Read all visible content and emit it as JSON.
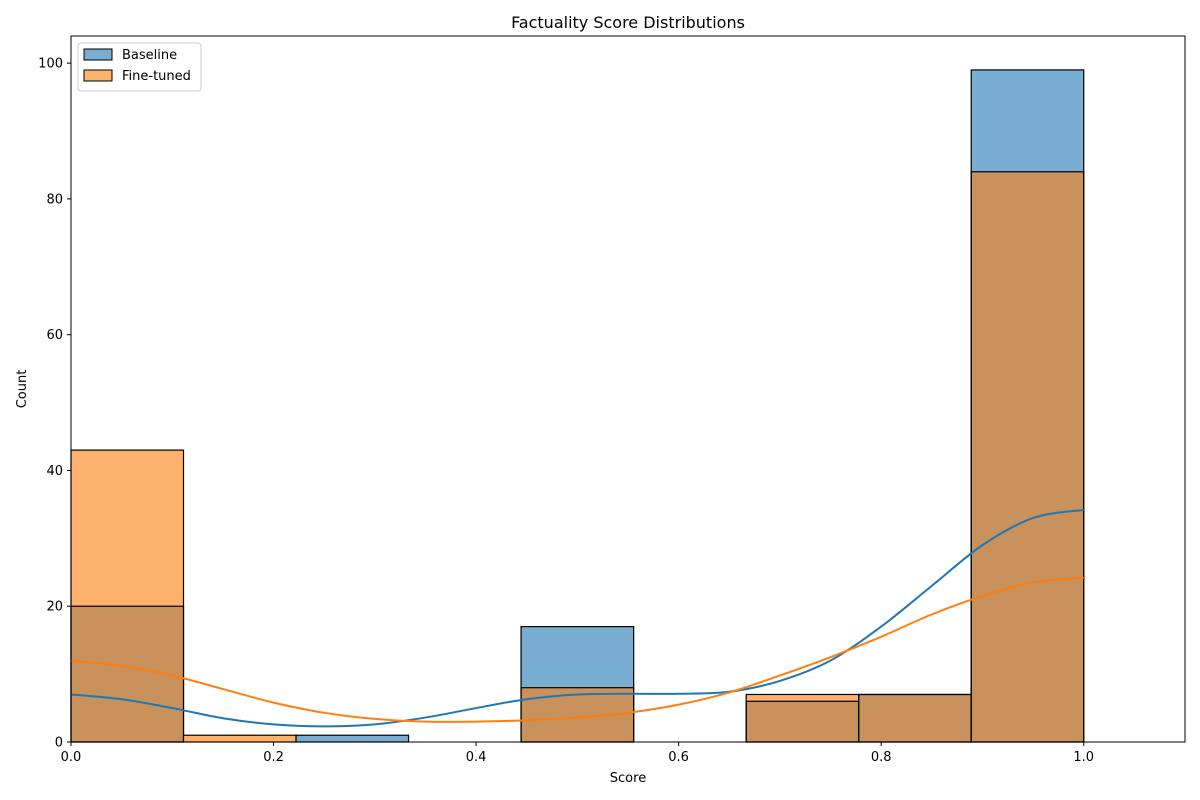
{
  "chart_data": {
    "type": "histogram",
    "title": "Factuality Score Distributions",
    "xlabel": "Score",
    "ylabel": "Count",
    "xlim": [
      0,
      1.1
    ],
    "ylim": [
      0,
      104
    ],
    "x_ticks": [
      0.0,
      0.2,
      0.4,
      0.6,
      0.8,
      1.0
    ],
    "x_tick_labels": [
      "0.0",
      "0.2",
      "0.4",
      "0.6",
      "0.8",
      "1.0"
    ],
    "y_ticks": [
      0,
      20,
      40,
      60,
      80,
      100
    ],
    "y_tick_labels": [
      "0",
      "20",
      "40",
      "60",
      "80",
      "100"
    ],
    "grid": false,
    "legend_position": "top-left",
    "bin_edges": [
      0.0,
      0.1111,
      0.2222,
      0.3333,
      0.4444,
      0.5556,
      0.6667,
      0.7778,
      0.8889,
      1.0
    ],
    "series": [
      {
        "name": "Baseline",
        "color": "#1f77b4",
        "counts": [
          20,
          0,
          1,
          0,
          17,
          0,
          6,
          7,
          99
        ],
        "kde": {
          "x": [
            0.0,
            0.05,
            0.1,
            0.15,
            0.2,
            0.25,
            0.3,
            0.35,
            0.4,
            0.45,
            0.5,
            0.55,
            0.6,
            0.65,
            0.7,
            0.75,
            0.8,
            0.85,
            0.9,
            0.95,
            1.0
          ],
          "y": [
            7.0,
            6.3,
            5.0,
            3.5,
            2.6,
            2.3,
            2.6,
            3.6,
            5.0,
            6.3,
            7.0,
            7.1,
            7.1,
            7.4,
            9.0,
            12.0,
            17.0,
            23.0,
            29.0,
            33.0,
            34.2
          ]
        }
      },
      {
        "name": "Fine-tuned",
        "color": "#ff7f0e",
        "counts": [
          43,
          1,
          0,
          0,
          8,
          0,
          7,
          7,
          84
        ],
        "kde": {
          "x": [
            0.0,
            0.05,
            0.1,
            0.15,
            0.2,
            0.25,
            0.3,
            0.35,
            0.4,
            0.45,
            0.5,
            0.55,
            0.6,
            0.65,
            0.7,
            0.75,
            0.8,
            0.85,
            0.9,
            0.95,
            1.0
          ],
          "y": [
            12.0,
            11.2,
            9.8,
            7.8,
            5.8,
            4.3,
            3.4,
            3.0,
            3.0,
            3.2,
            3.6,
            4.3,
            5.5,
            7.3,
            9.8,
            12.5,
            15.5,
            18.8,
            21.5,
            23.5,
            24.2
          ]
        }
      }
    ]
  }
}
